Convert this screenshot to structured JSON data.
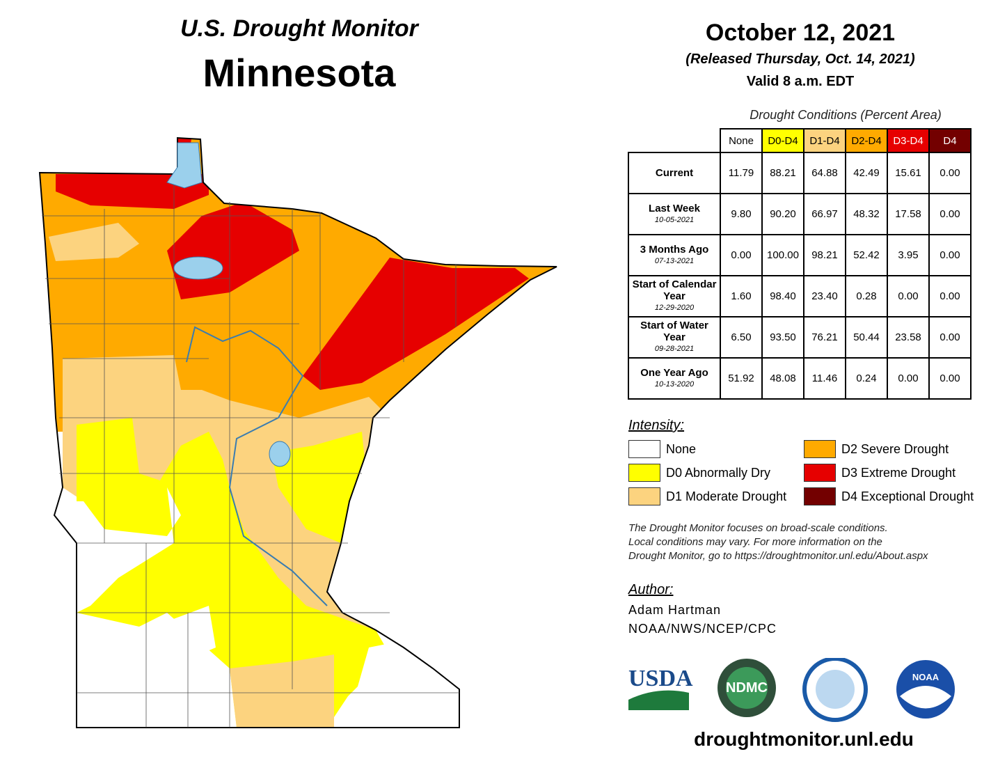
{
  "header": {
    "title": "U.S. Drought Monitor",
    "state": "Minnesota",
    "date": "October 12, 2021",
    "released": "(Released Thursday, Oct. 14, 2021)",
    "valid": "Valid 8 a.m. EDT"
  },
  "table": {
    "caption": "Drought Conditions (Percent Area)",
    "columns": [
      "None",
      "D0-D4",
      "D1-D4",
      "D2-D4",
      "D3-D4",
      "D4"
    ],
    "rows": [
      {
        "label": "Current",
        "values": [
          "11.79",
          "88.21",
          "64.88",
          "42.49",
          "15.61",
          "0.00"
        ]
      },
      {
        "label": "Last Week",
        "date": "10-05-2021",
        "values": [
          "9.80",
          "90.20",
          "66.97",
          "48.32",
          "17.58",
          "0.00"
        ]
      },
      {
        "label": "3 Months Ago",
        "date": "07-13-2021",
        "values": [
          "0.00",
          "100.00",
          "98.21",
          "52.42",
          "3.95",
          "0.00"
        ]
      },
      {
        "label": "Start of Calendar Year",
        "date": "12-29-2020",
        "values": [
          "1.60",
          "98.40",
          "23.40",
          "0.28",
          "0.00",
          "0.00"
        ]
      },
      {
        "label": "Start of Water Year",
        "date": "09-28-2021",
        "values": [
          "6.50",
          "93.50",
          "76.21",
          "50.44",
          "23.58",
          "0.00"
        ]
      },
      {
        "label": "One Year Ago",
        "date": "10-13-2020",
        "values": [
          "51.92",
          "48.08",
          "11.46",
          "0.24",
          "0.00",
          "0.00"
        ]
      }
    ]
  },
  "legend": {
    "title": "Intensity:",
    "items": [
      {
        "label": "None",
        "color": "#ffffff"
      },
      {
        "label": "D0 Abnormally Dry",
        "color": "#ffff00"
      },
      {
        "label": "D1 Moderate Drought",
        "color": "#fcd37f"
      },
      {
        "label": "D2 Severe Drought",
        "color": "#ffaa00"
      },
      {
        "label": "D3 Extreme Drought",
        "color": "#e60000"
      },
      {
        "label": "D4 Exceptional Drought",
        "color": "#730000"
      }
    ]
  },
  "note": [
    "The Drought Monitor focuses on broad-scale conditions.",
    "Local conditions may vary. For more information on the",
    "Drought Monitor, go to https://droughtmonitor.unl.edu/About.aspx"
  ],
  "author": {
    "title": "Author:",
    "name": "Adam Hartman",
    "org": "NOAA/NWS/NCEP/CPC"
  },
  "logos": {
    "usda": "USDA",
    "ndmc": "NDMC",
    "noaa": "NOAA"
  },
  "footer": {
    "url": "droughtmonitor.unl.edu"
  }
}
